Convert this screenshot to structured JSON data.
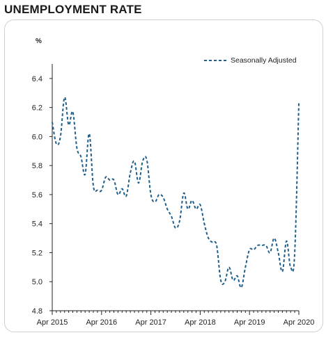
{
  "title": "UNEMPLOYMENT RATE",
  "colors": {
    "series": "#1f5f8b",
    "axis": "#222222",
    "panel_border": "#d0d0d0"
  },
  "chart_data": {
    "type": "line",
    "title": "UNEMPLOYMENT RATE",
    "ylabel": "%",
    "xlabel": "",
    "ylim": [
      4.8,
      6.5
    ],
    "yticks": [
      4.8,
      5.0,
      5.2,
      5.4,
      5.6,
      5.8,
      6.0,
      6.2,
      6.4
    ],
    "ytick_labels": [
      "4.8",
      "5.0",
      "5.2",
      "5.4",
      "5.6",
      "5.8",
      "6.0",
      "6.2",
      "6.4"
    ],
    "x_start": "Apr 2015",
    "x_end": "Apr 2020",
    "xtick_labels": [
      "Apr 2015",
      "Apr 2016",
      "Apr 2017",
      "Apr 2018",
      "Apr 2019",
      "Apr 2020"
    ],
    "grid": false,
    "legend_position": "top-right",
    "series": [
      {
        "name": "Seasonally Adjusted",
        "style": "dashed",
        "x": [
          "Apr 2015",
          "May 2015",
          "Jun 2015",
          "Jul 2015",
          "Aug 2015",
          "Sep 2015",
          "Oct 2015",
          "Nov 2015",
          "Dec 2015",
          "Jan 2016",
          "Feb 2016",
          "Mar 2016",
          "Apr 2016",
          "May 2016",
          "Jun 2016",
          "Jul 2016",
          "Aug 2016",
          "Sep 2016",
          "Oct 2016",
          "Nov 2016",
          "Dec 2016",
          "Jan 2017",
          "Feb 2017",
          "Mar 2017",
          "Apr 2017",
          "May 2017",
          "Jun 2017",
          "Jul 2017",
          "Aug 2017",
          "Sep 2017",
          "Oct 2017",
          "Nov 2017",
          "Dec 2017",
          "Jan 2018",
          "Feb 2018",
          "Mar 2018",
          "Apr 2018",
          "May 2018",
          "Jun 2018",
          "Jul 2018",
          "Aug 2018",
          "Sep 2018",
          "Oct 2018",
          "Nov 2018",
          "Dec 2018",
          "Jan 2019",
          "Feb 2019",
          "Mar 2019",
          "Apr 2019",
          "May 2019",
          "Jun 2019",
          "Jul 2019",
          "Aug 2019",
          "Sep 2019",
          "Oct 2019",
          "Nov 2019",
          "Dec 2019",
          "Jan 2020",
          "Feb 2020",
          "Mar 2020",
          "Apr 2020"
        ],
        "values": [
          6.1,
          5.95,
          6.0,
          6.27,
          6.08,
          6.17,
          5.92,
          5.86,
          5.74,
          6.02,
          5.66,
          5.63,
          5.63,
          5.72,
          5.7,
          5.7,
          5.6,
          5.64,
          5.59,
          5.75,
          5.83,
          5.68,
          5.83,
          5.84,
          5.6,
          5.55,
          5.6,
          5.58,
          5.5,
          5.45,
          5.37,
          5.42,
          5.61,
          5.5,
          5.56,
          5.5,
          5.53,
          5.4,
          5.3,
          5.27,
          5.25,
          5.01,
          5.0,
          5.1,
          5.01,
          5.04,
          4.96,
          5.1,
          5.22,
          5.22,
          5.25,
          5.25,
          5.25,
          5.2,
          5.3,
          5.2,
          5.07,
          5.28,
          5.1,
          5.2,
          6.23
        ]
      }
    ]
  }
}
